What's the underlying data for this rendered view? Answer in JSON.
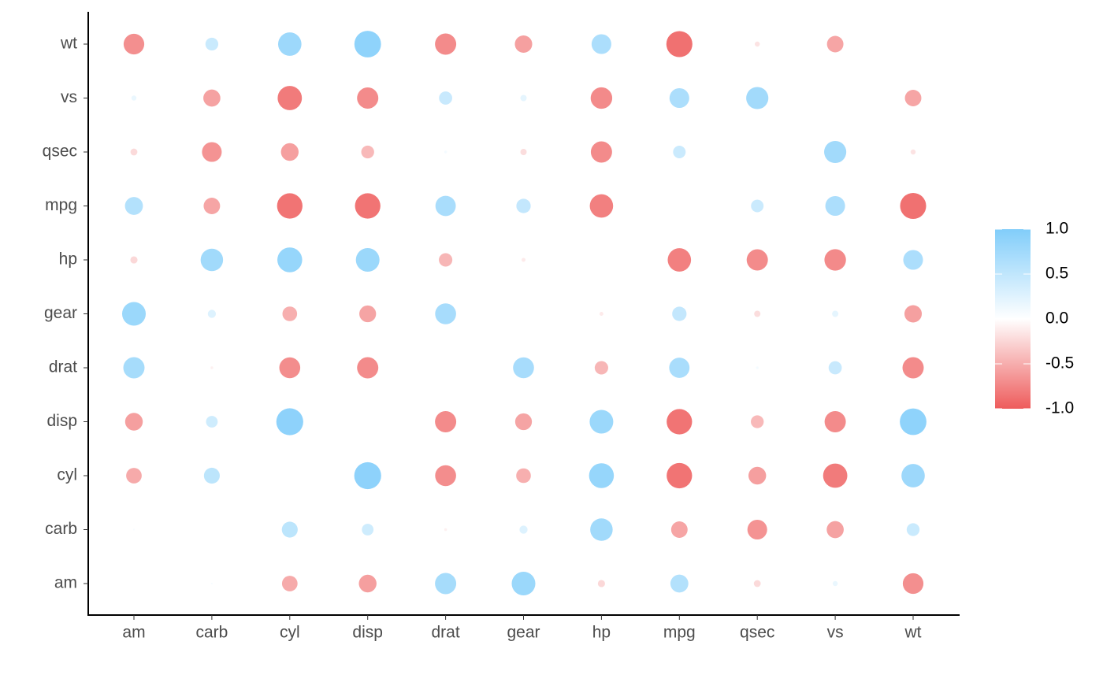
{
  "chart_data": {
    "type": "bubble-matrix",
    "categories": [
      "am",
      "carb",
      "cyl",
      "disp",
      "drat",
      "gear",
      "hp",
      "mpg",
      "qsec",
      "vs",
      "wt"
    ],
    "values": [
      [
        null,
        0.06,
        -0.52,
        -0.59,
        0.71,
        0.79,
        -0.24,
        0.6,
        -0.23,
        0.17,
        -0.69
      ],
      [
        0.06,
        null,
        0.53,
        0.39,
        -0.09,
        0.27,
        0.75,
        -0.55,
        -0.66,
        -0.57,
        0.43
      ],
      [
        -0.52,
        0.53,
        null,
        0.9,
        -0.7,
        -0.49,
        0.83,
        -0.85,
        -0.59,
        -0.81,
        0.78
      ],
      [
        -0.59,
        0.39,
        0.9,
        null,
        -0.71,
        -0.56,
        0.79,
        -0.85,
        -0.43,
        -0.71,
        0.89
      ],
      [
        0.71,
        -0.09,
        -0.7,
        -0.71,
        null,
        0.7,
        -0.45,
        0.68,
        0.09,
        0.44,
        -0.71
      ],
      [
        0.79,
        0.27,
        -0.49,
        -0.56,
        0.7,
        null,
        -0.13,
        0.48,
        -0.21,
        0.21,
        -0.58
      ],
      [
        -0.24,
        0.75,
        0.83,
        0.79,
        -0.45,
        -0.13,
        null,
        -0.78,
        -0.71,
        -0.72,
        0.66
      ],
      [
        0.6,
        -0.55,
        -0.85,
        -0.85,
        0.68,
        0.48,
        -0.78,
        null,
        0.42,
        0.66,
        -0.87
      ],
      [
        -0.23,
        -0.66,
        -0.59,
        -0.43,
        0.09,
        -0.21,
        -0.71,
        0.42,
        null,
        0.74,
        -0.17
      ],
      [
        0.17,
        -0.57,
        -0.81,
        -0.71,
        0.44,
        0.21,
        -0.72,
        0.66,
        0.74,
        null,
        -0.55
      ],
      [
        -0.69,
        0.43,
        0.78,
        0.89,
        -0.71,
        -0.58,
        0.66,
        -0.87,
        -0.17,
        -0.55,
        null
      ]
    ],
    "colors": [
      "#ee5c5c",
      "#ffffff",
      "#81cdfa"
    ],
    "clim": [
      -1,
      1
    ],
    "cticks": [
      {
        "value": -1,
        "label": "-1.0"
      },
      {
        "value": -0.5,
        "label": "-0.5"
      },
      {
        "value": 0,
        "label": "0.0"
      },
      {
        "value": 0.5,
        "label": "0.5"
      },
      {
        "value": 1,
        "label": "1.0"
      }
    ]
  }
}
